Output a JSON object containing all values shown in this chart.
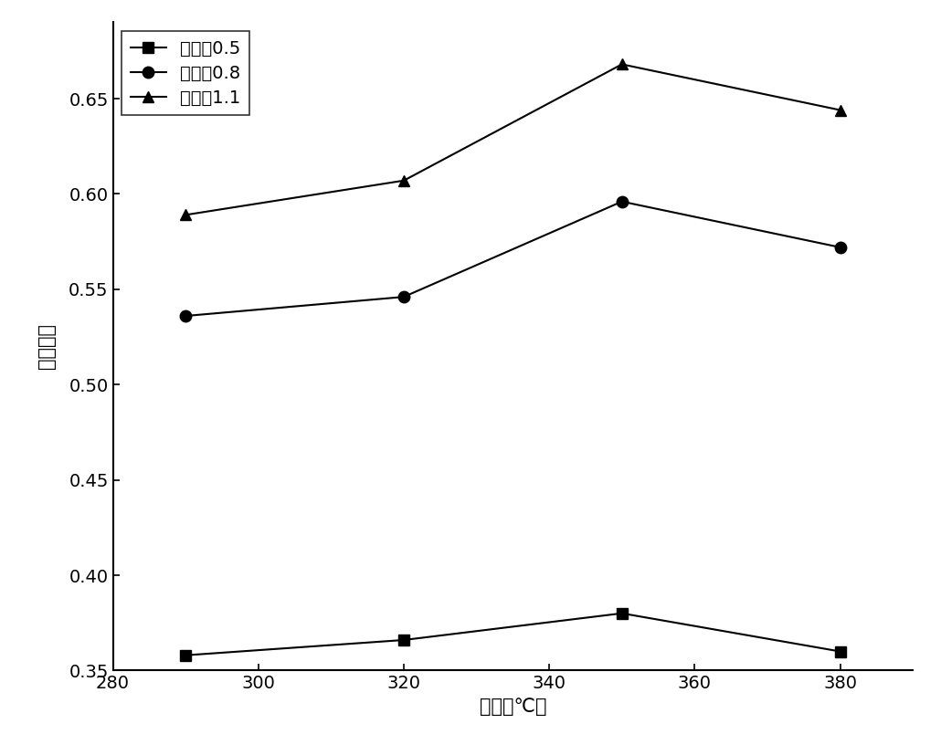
{
  "x": [
    290,
    320,
    350,
    380
  ],
  "series": [
    {
      "label": "氨氮比0.5",
      "y": [
        0.358,
        0.366,
        0.38,
        0.36
      ],
      "marker": "s",
      "color": "#000000"
    },
    {
      "label": "氨氮比0.8",
      "y": [
        0.536,
        0.546,
        0.596,
        0.572
      ],
      "marker": "o",
      "color": "#000000"
    },
    {
      "label": "氨氮比1.1",
      "y": [
        0.589,
        0.607,
        0.668,
        0.644
      ],
      "marker": "^",
      "color": "#000000"
    }
  ],
  "xlabel": "温度（℃）",
  "ylabel": "脱祈效率",
  "xlim": [
    280,
    390
  ],
  "ylim": [
    0.35,
    0.69
  ],
  "xticks": [
    280,
    300,
    320,
    340,
    360,
    380
  ],
  "yticks": [
    0.35,
    0.4,
    0.45,
    0.5,
    0.55,
    0.6,
    0.65
  ],
  "background_color": "#ffffff",
  "marker_size": 9,
  "line_width": 1.5,
  "legend_loc": "upper left",
  "legend_fontsize": 14,
  "axis_fontsize": 15,
  "tick_fontsize": 14
}
